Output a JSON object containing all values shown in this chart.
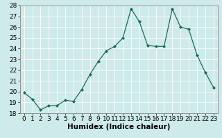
{
  "x": [
    0,
    1,
    2,
    3,
    4,
    5,
    6,
    7,
    8,
    9,
    10,
    11,
    12,
    13,
    14,
    15,
    16,
    17,
    18,
    19,
    20,
    21,
    22,
    23
  ],
  "y": [
    19.9,
    19.3,
    18.3,
    18.7,
    18.7,
    19.2,
    19.1,
    20.2,
    21.6,
    22.8,
    23.8,
    24.2,
    25.0,
    27.7,
    26.5,
    24.3,
    24.2,
    24.2,
    27.7,
    26.0,
    25.8,
    23.4,
    21.8,
    20.4
  ],
  "line_color": "#1a6b5a",
  "marker": "D",
  "marker_size": 2,
  "xlabel": "Humidex (Indice chaleur)",
  "xlim": [
    -0.5,
    23.5
  ],
  "ylim": [
    18,
    28
  ],
  "yticks": [
    18,
    19,
    20,
    21,
    22,
    23,
    24,
    25,
    26,
    27,
    28
  ],
  "xticks": [
    0,
    1,
    2,
    3,
    4,
    5,
    6,
    7,
    8,
    9,
    10,
    11,
    12,
    13,
    14,
    15,
    16,
    17,
    18,
    19,
    20,
    21,
    22,
    23
  ],
  "bg_color": "#ceeaea",
  "grid_color": "#ffffff",
  "xlabel_fontsize": 7.5,
  "tick_fontsize": 6.5
}
